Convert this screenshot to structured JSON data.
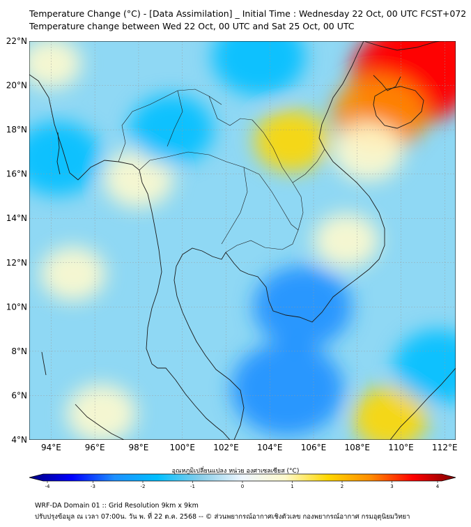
{
  "title_line1": "Temperature Change (°C) - [Data Assimilation] _ Initial Time : Wednesday 22 Oct, 00 UTC FCST+072",
  "title_line2": "Temperature change between Wed 22 Oct, 00 UTC and Sat 25 Oct, 00 UTC",
  "map": {
    "lon_min": 93,
    "lon_max": 112.5,
    "lat_min": 4,
    "lat_max": 22,
    "lat_ticks": [
      {
        "value": 4,
        "label": "4°N"
      },
      {
        "value": 6,
        "label": "6°N"
      },
      {
        "value": 8,
        "label": "8°N"
      },
      {
        "value": 10,
        "label": "10°N"
      },
      {
        "value": 12,
        "label": "12°N"
      },
      {
        "value": 14,
        "label": "14°N"
      },
      {
        "value": 16,
        "label": "16°N"
      },
      {
        "value": 18,
        "label": "18°N"
      },
      {
        "value": 20,
        "label": "20°N"
      },
      {
        "value": 22,
        "label": "22°N"
      }
    ],
    "lon_ticks": [
      {
        "value": 94,
        "label": "94°E"
      },
      {
        "value": 96,
        "label": "96°E"
      },
      {
        "value": 98,
        "label": "98°E"
      },
      {
        "value": 100,
        "label": "100°E"
      },
      {
        "value": 102,
        "label": "102°E"
      },
      {
        "value": 104,
        "label": "104°E"
      },
      {
        "value": 106,
        "label": "106°E"
      },
      {
        "value": 108,
        "label": "108°E"
      },
      {
        "value": 110,
        "label": "110°E"
      },
      {
        "value": 112,
        "label": "112°E"
      }
    ],
    "temperature_anomalies": [
      {
        "lon": 110.5,
        "lat": 20.5,
        "value": 3.2
      },
      {
        "lon": 111.5,
        "lat": 21.5,
        "value": 3.0
      },
      {
        "lon": 109.0,
        "lat": 18.7,
        "value": 2.0
      },
      {
        "lon": 108.5,
        "lat": 17.0,
        "value": 1.0
      },
      {
        "lon": 107.5,
        "lat": 13.0,
        "value": 0.8
      },
      {
        "lon": 105.0,
        "lat": 17.5,
        "value": 1.2
      },
      {
        "lon": 98.0,
        "lat": 15.8,
        "value": 1.0
      },
      {
        "lon": 95.0,
        "lat": 11.5,
        "value": 0.8
      },
      {
        "lon": 96.3,
        "lat": 5.2,
        "value": 1.0
      },
      {
        "lon": 109.5,
        "lat": 5.0,
        "value": 1.2
      },
      {
        "lon": 94.0,
        "lat": 21.0,
        "value": 0.6
      },
      {
        "lon": 104.8,
        "lat": 6.3,
        "value": -2.8
      },
      {
        "lon": 105.5,
        "lat": 10.0,
        "value": -2.2
      },
      {
        "lon": 103.5,
        "lat": 21.3,
        "value": -2.0
      },
      {
        "lon": 94.3,
        "lat": 16.7,
        "value": -1.8
      },
      {
        "lon": 111.7,
        "lat": 7.3,
        "value": -1.8
      },
      {
        "lon": 99.5,
        "lat": 18.0,
        "value": -1.6
      }
    ]
  },
  "colorbar": {
    "label": "อุณหภูมิเปลี่ยนแปลง หน่วย องศาเซลเซียส (°C)",
    "min": -4,
    "max": 4,
    "ticks": [
      {
        "value": -4,
        "label": "-4"
      },
      {
        "value": -3,
        "label": "-3"
      },
      {
        "value": -2,
        "label": "-2"
      },
      {
        "value": -1,
        "label": "-1"
      },
      {
        "value": 0,
        "label": "0"
      },
      {
        "value": 1,
        "label": "1"
      },
      {
        "value": 2,
        "label": "2"
      },
      {
        "value": 3,
        "label": "3"
      },
      {
        "value": 4,
        "label": "4"
      }
    ],
    "colors": [
      "#00007f",
      "#0000ff",
      "#1e90ff",
      "#00bfff",
      "#87ceeb",
      "#f0f8ff",
      "#fffacd",
      "#ffd700",
      "#ff8c00",
      "#ff0000",
      "#7f0000"
    ]
  },
  "footer_line1": "WRF-DA Domain 01 :: Grid Resolution 9km x 9km",
  "footer_line2": "ปรับปรุงข้อมูล ณ เวลา 07:00น. วัน พ. ที่ 22 ต.ค. 2568 -- © ส่วนพยากรณ์อากาศเชิงตัวเลข กองพยากรณ์อากาศ กรมอุตุนิยมวิทยา"
}
